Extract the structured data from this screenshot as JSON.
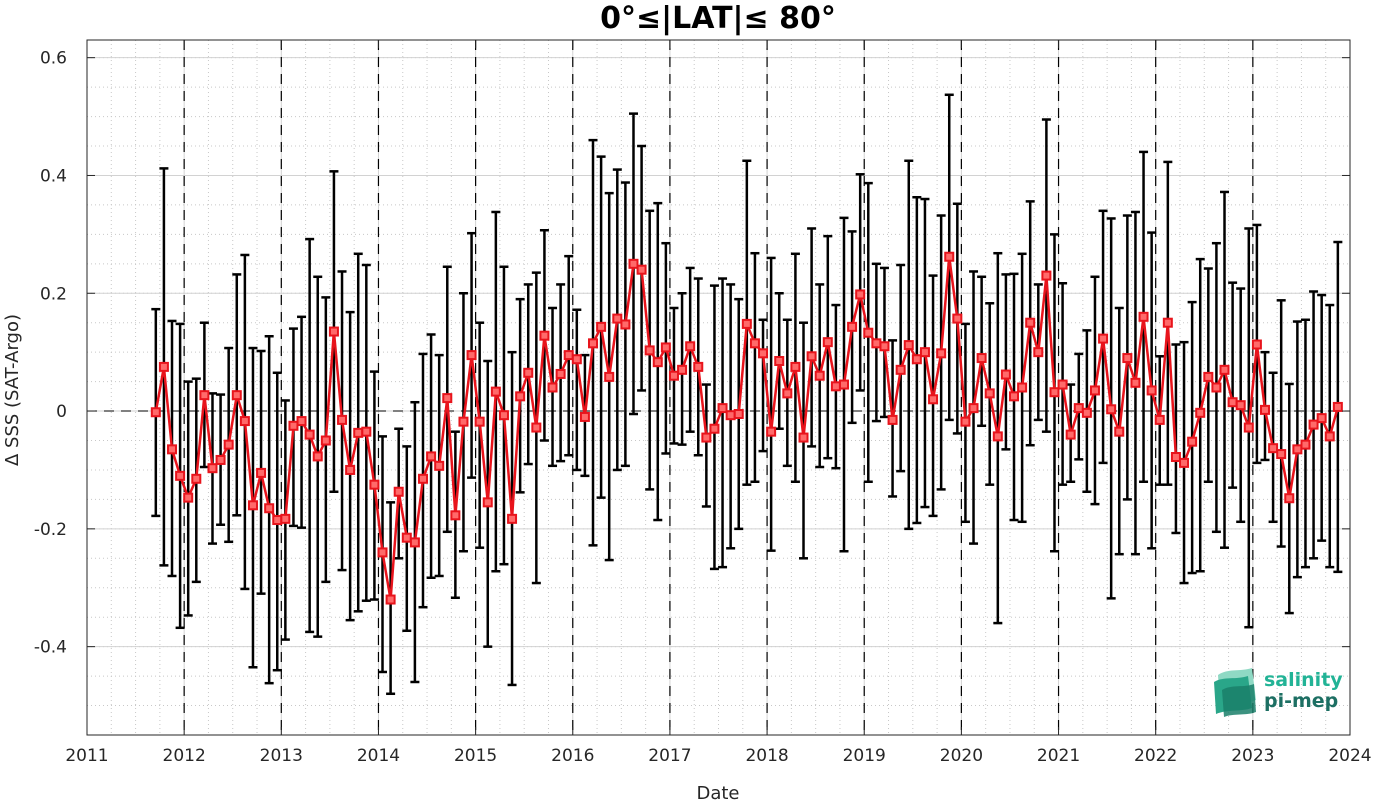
{
  "chart_data": {
    "type": "line",
    "title": "0°≤|LAT|≤ 80°",
    "xlabel": "Date",
    "ylabel": "Δ SSS (SAT-Argo)",
    "xlim": [
      2011,
      2024
    ],
    "ylim": [
      -0.55,
      0.63
    ],
    "x_ticks": [
      "2011",
      "2012",
      "2013",
      "2014",
      "2015",
      "2016",
      "2017",
      "2018",
      "2019",
      "2020",
      "2021",
      "2022",
      "2023",
      "2024"
    ],
    "y_ticks": [
      "-0.4",
      "-0.2",
      "0",
      "0.2",
      "0.4",
      "0.6"
    ],
    "grid": true,
    "series_color": "#e8141c",
    "errorbar_color": "#000000",
    "series": [
      {
        "start_month": "2011-09",
        "values": [
          -0.002,
          0.075,
          -0.065,
          -0.11,
          -0.147,
          -0.115,
          0.027,
          -0.097,
          -0.083,
          -0.057,
          0.027,
          -0.017,
          -0.16,
          -0.105,
          -0.165,
          -0.185,
          -0.183,
          -0.025,
          -0.017,
          -0.04,
          -0.077,
          -0.05,
          0.135,
          -0.015,
          -0.1,
          -0.037,
          -0.035,
          -0.125,
          -0.24,
          -0.32,
          -0.137,
          -0.215,
          -0.223,
          -0.115,
          -0.077,
          -0.093,
          0.022,
          -0.177,
          -0.018,
          0.095,
          -0.018,
          -0.155,
          0.033,
          -0.007,
          -0.183,
          0.025,
          0.065,
          -0.028,
          0.128,
          0.04,
          0.063,
          0.095,
          0.088,
          -0.01,
          0.115,
          0.143,
          0.058,
          0.157,
          0.147,
          0.25,
          0.24,
          0.103,
          0.083,
          0.108,
          0.06,
          0.07,
          0.11,
          0.075,
          -0.045,
          -0.03,
          0.005,
          -0.007,
          -0.005,
          0.148,
          0.115,
          0.098,
          -0.035,
          0.085,
          0.03,
          0.075,
          -0.045,
          0.093,
          0.06,
          0.117,
          0.042,
          0.045,
          0.143,
          0.198,
          0.133,
          0.115,
          0.11,
          -0.015,
          0.07,
          0.112,
          0.088,
          0.1,
          0.02,
          0.098,
          0.262,
          0.157,
          -0.018,
          0.005,
          0.09,
          0.03,
          -0.043,
          0.062,
          0.025,
          0.04,
          0.15,
          0.1,
          0.23,
          0.032,
          0.045,
          -0.04,
          0.005,
          -0.003,
          0.035,
          0.123,
          0.003,
          -0.035,
          0.09,
          0.048,
          0.16,
          0.035,
          -0.015,
          0.15,
          -0.078,
          -0.088,
          -0.052,
          -0.003,
          0.058,
          0.04,
          0.07,
          0.015,
          0.01,
          -0.028,
          0.113,
          0.002,
          -0.063,
          -0.073,
          -0.148,
          -0.065,
          -0.057,
          -0.023,
          -0.012,
          -0.043,
          0.007
        ],
        "error_upper": [
          0.173,
          0.412,
          0.153,
          0.148,
          0.05,
          0.055,
          0.15,
          0.03,
          0.028,
          0.107,
          0.232,
          0.265,
          0.107,
          0.102,
          0.127,
          0.065,
          0.018,
          0.14,
          0.16,
          0.292,
          0.228,
          0.193,
          0.407,
          0.237,
          0.168,
          0.267,
          0.248,
          0.067,
          -0.043,
          -0.155,
          -0.03,
          -0.06,
          0.015,
          0.097,
          0.13,
          0.095,
          0.245,
          -0.035,
          0.2,
          0.302,
          0.15,
          0.085,
          0.338,
          0.245,
          0.1,
          0.19,
          0.215,
          0.235,
          0.307,
          0.175,
          0.215,
          0.263,
          0.172,
          0.095,
          0.46,
          0.432,
          0.37,
          0.41,
          0.388,
          0.505,
          0.45,
          0.34,
          0.353,
          0.285,
          0.175,
          0.2,
          0.243,
          0.225,
          0.045,
          0.213,
          0.225,
          0.215,
          0.19,
          0.425,
          0.268,
          0.155,
          0.26,
          0.2,
          0.155,
          0.267,
          0.15,
          0.31,
          0.215,
          0.297,
          0.18,
          0.328,
          0.305,
          0.402,
          0.387,
          0.25,
          0.243,
          0.12,
          0.248,
          0.425,
          0.363,
          0.36,
          0.23,
          0.332,
          0.537,
          0.352,
          0.148,
          0.237,
          0.228,
          0.183,
          0.268,
          0.232,
          0.233,
          0.267,
          0.356,
          0.215,
          0.495,
          0.3,
          0.217,
          0.045,
          0.097,
          0.137,
          0.228,
          0.34,
          0.327,
          0.175,
          0.332,
          0.338,
          0.44,
          0.303,
          0.093,
          0.423,
          0.113,
          0.117,
          0.185,
          0.258,
          0.242,
          0.285,
          0.372,
          0.218,
          0.208,
          0.31,
          0.316,
          0.1,
          0.065,
          0.188,
          0.046,
          0.152,
          0.155,
          0.203,
          0.197,
          0.18,
          0.287
        ],
        "error_lower": [
          -0.178,
          -0.262,
          -0.28,
          -0.368,
          -0.347,
          -0.29,
          -0.095,
          -0.225,
          -0.193,
          -0.222,
          -0.177,
          -0.302,
          -0.435,
          -0.31,
          -0.462,
          -0.44,
          -0.388,
          -0.195,
          -0.198,
          -0.375,
          -0.383,
          -0.29,
          -0.137,
          -0.27,
          -0.355,
          -0.34,
          -0.322,
          -0.32,
          -0.443,
          -0.48,
          -0.25,
          -0.373,
          -0.46,
          -0.333,
          -0.283,
          -0.28,
          -0.205,
          -0.317,
          -0.238,
          -0.113,
          -0.232,
          -0.4,
          -0.272,
          -0.26,
          -0.465,
          -0.138,
          -0.09,
          -0.292,
          -0.05,
          -0.093,
          -0.085,
          -0.075,
          -0.1,
          -0.11,
          -0.228,
          -0.147,
          -0.253,
          -0.1,
          -0.093,
          -0.005,
          0.035,
          -0.133,
          -0.185,
          -0.072,
          -0.055,
          -0.057,
          -0.035,
          -0.075,
          -0.162,
          -0.268,
          -0.265,
          -0.233,
          -0.2,
          -0.125,
          -0.12,
          -0.068,
          -0.237,
          -0.03,
          -0.093,
          -0.12,
          -0.25,
          -0.06,
          -0.095,
          -0.08,
          -0.097,
          -0.238,
          -0.02,
          0.035,
          -0.12,
          -0.017,
          -0.01,
          -0.145,
          -0.102,
          -0.2,
          -0.19,
          -0.163,
          -0.178,
          -0.133,
          -0.015,
          -0.038,
          -0.188,
          -0.225,
          -0.025,
          -0.125,
          -0.36,
          -0.065,
          -0.185,
          -0.188,
          -0.058,
          -0.015,
          -0.035,
          -0.238,
          -0.125,
          -0.12,
          -0.082,
          -0.137,
          -0.158,
          -0.088,
          -0.318,
          -0.243,
          -0.15,
          -0.243,
          -0.12,
          -0.233,
          -0.125,
          -0.125,
          -0.207,
          -0.292,
          -0.275,
          -0.272,
          -0.12,
          -0.205,
          -0.232,
          -0.13,
          -0.188,
          -0.367,
          -0.088,
          -0.083,
          -0.188,
          -0.23,
          -0.343,
          -0.282,
          -0.265,
          -0.25,
          -0.22,
          -0.265,
          -0.273
        ]
      }
    ]
  },
  "logo": {
    "line1": "salinity",
    "line2": "pi-mep"
  }
}
